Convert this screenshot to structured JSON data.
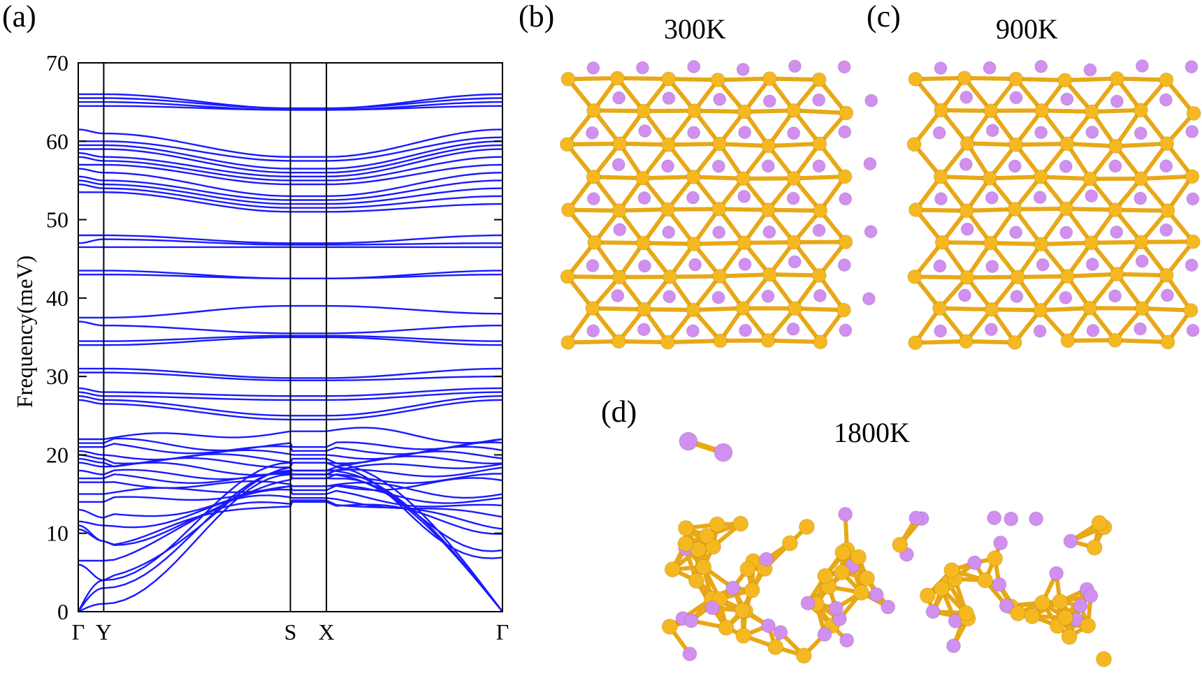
{
  "panels": {
    "a": "(a)",
    "b": "(b)",
    "c": "(c)",
    "d": "(d)"
  },
  "temperatures": {
    "b": "300K",
    "c": "900K",
    "d": "1800K"
  },
  "colors": {
    "bands": "#1a1aff",
    "atom_p": "#d18ff0",
    "atom_y": "#f5b820",
    "bond": "#e8a817"
  },
  "chart_data": {
    "type": "line",
    "title": "",
    "ylabel": "Frequency(meV)",
    "xlabel": "",
    "ylim": [
      0,
      70
    ],
    "yticks": [
      0,
      10,
      20,
      30,
      40,
      50,
      60,
      70
    ],
    "x_path": [
      {
        "label": "Γ",
        "pos": 0.0
      },
      {
        "label": "Y",
        "pos": 0.06
      },
      {
        "label": "S",
        "pos": 0.5
      },
      {
        "label": "X",
        "pos": 0.585
      },
      {
        "label": "Γ",
        "pos": 1.0
      }
    ],
    "band_groups": [
      {
        "name": "optical-top",
        "count": 4,
        "G": [
          66,
          65.5,
          65,
          64.5
        ],
        "Y": [
          66,
          65.5,
          65,
          64.5
        ],
        "S": [
          64.2,
          64.2,
          64,
          64
        ],
        "X": [
          64.2,
          64.2,
          64,
          64
        ],
        "G2": [
          66,
          65.5,
          65,
          64.5
        ]
      },
      {
        "name": "optical-58",
        "count": 12,
        "G": [
          61.5,
          60,
          59.5,
          59,
          58.5,
          58,
          57,
          56.5,
          55.5,
          55,
          54.5,
          53.5
        ],
        "Y": [
          61,
          60,
          59.5,
          59,
          58,
          57.5,
          57,
          56,
          55,
          54.5,
          54,
          53.5
        ],
        "S": [
          58,
          57.5,
          56.5,
          56,
          55.5,
          55,
          54.5,
          53,
          52.5,
          52,
          51.5,
          51
        ],
        "X": [
          58,
          57.5,
          56.5,
          56,
          55.5,
          55,
          54.5,
          53,
          52.5,
          52,
          51.5,
          51
        ],
        "G2": [
          61.5,
          60.5,
          60,
          59.5,
          59,
          58,
          57,
          56,
          55,
          54,
          53,
          52
        ]
      },
      {
        "name": "optical-47",
        "count": 3,
        "G": [
          48,
          47,
          46.5
        ],
        "Y": [
          48,
          47.5,
          46.5
        ],
        "S": [
          47,
          46.8,
          46.5
        ],
        "X": [
          47,
          46.8,
          46.5
        ],
        "G2": [
          48,
          47,
          46.5
        ]
      },
      {
        "name": "optical-43",
        "count": 2,
        "G": [
          43.5,
          43
        ],
        "Y": [
          43.5,
          43
        ],
        "S": [
          42.5,
          42.5
        ],
        "X": [
          42.5,
          42.5
        ],
        "G2": [
          43.5,
          43
        ]
      },
      {
        "name": "optical-36",
        "count": 4,
        "G": [
          37.5,
          37,
          34.5,
          34
        ],
        "Y": [
          37.5,
          36.5,
          34.5,
          34
        ],
        "S": [
          39,
          35.5,
          35.2,
          35
        ],
        "X": [
          39,
          35.5,
          35.2,
          35
        ],
        "G2": [
          38,
          36.5,
          34.5,
          34
        ]
      },
      {
        "name": "optical-28",
        "count": 6,
        "G": [
          31,
          30.5,
          28.5,
          28,
          27.5,
          27
        ],
        "Y": [
          31,
          30.5,
          28,
          27.5,
          27,
          26.5
        ],
        "S": [
          29.8,
          29.5,
          27.5,
          27,
          25,
          24.5
        ],
        "X": [
          29.8,
          29.5,
          27.5,
          27,
          25,
          24.5
        ],
        "G2": [
          31,
          30,
          28.5,
          28,
          27.5,
          27
        ]
      },
      {
        "name": "mid",
        "count": 10,
        "G": [
          22,
          21.5,
          21,
          20.5,
          20,
          19.5,
          19,
          18,
          17,
          16.5
        ],
        "Y": [
          22,
          21.5,
          21,
          20,
          19.5,
          19,
          18.5,
          17.5,
          17,
          16.5
        ],
        "S": [
          23,
          21,
          20.5,
          20,
          19.5,
          19,
          18,
          17.5,
          17,
          16
        ],
        "X": [
          23,
          21,
          20.5,
          20,
          19.5,
          19,
          18,
          17.5,
          17,
          16
        ],
        "G2": [
          22,
          21.5,
          21,
          20.5,
          20,
          19.5,
          19,
          18,
          17,
          16.5
        ]
      },
      {
        "name": "low",
        "count": 8,
        "G": [
          15,
          14,
          13,
          11.5,
          11,
          10.5,
          6.5,
          6
        ],
        "Y": [
          15,
          14,
          12,
          11,
          9,
          9,
          6.5,
          4
        ],
        "S": [
          16,
          15.5,
          15,
          14.5,
          14.2,
          14,
          17,
          18
        ],
        "X": [
          16,
          15.5,
          15,
          14.5,
          14.2,
          14,
          17,
          18
        ],
        "G2": [
          15,
          14,
          13,
          12,
          11,
          10.5,
          8,
          6.5
        ]
      },
      {
        "name": "acoustic",
        "count": 3,
        "G": [
          0,
          0,
          0
        ],
        "Y": [
          4,
          3,
          1
        ],
        "S": [
          19,
          18,
          17.5
        ],
        "X": [
          19,
          18,
          17.5
        ],
        "G2": [
          0,
          0,
          0
        ]
      }
    ]
  }
}
